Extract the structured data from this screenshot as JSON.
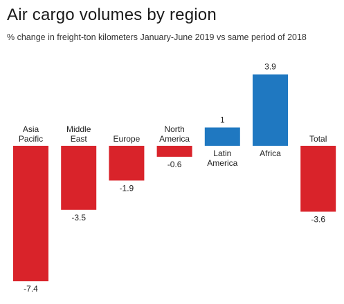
{
  "chart_data": {
    "type": "bar",
    "title": "Air cargo volumes by region",
    "subtitle": "% change in freight-ton kilometers January-June 2019 vs same period of 2018",
    "categories": [
      [
        "Asia",
        "Pacific"
      ],
      [
        "Middle",
        "East"
      ],
      [
        "Europe"
      ],
      [
        "North",
        "America"
      ],
      [
        "Latin",
        "America"
      ],
      [
        "Africa"
      ],
      [
        "Total"
      ]
    ],
    "values": [
      -7.4,
      -3.5,
      -1.9,
      -0.6,
      1,
      3.9,
      -3.6
    ],
    "value_labels": [
      "-7.4",
      "-3.5",
      "-1.9",
      "-0.6",
      "1",
      "3.9",
      "-3.6"
    ],
    "xlabel": "",
    "ylabel": "",
    "grid": false,
    "colors": {
      "negative": "#d9232a",
      "positive": "#1f78c1"
    }
  }
}
